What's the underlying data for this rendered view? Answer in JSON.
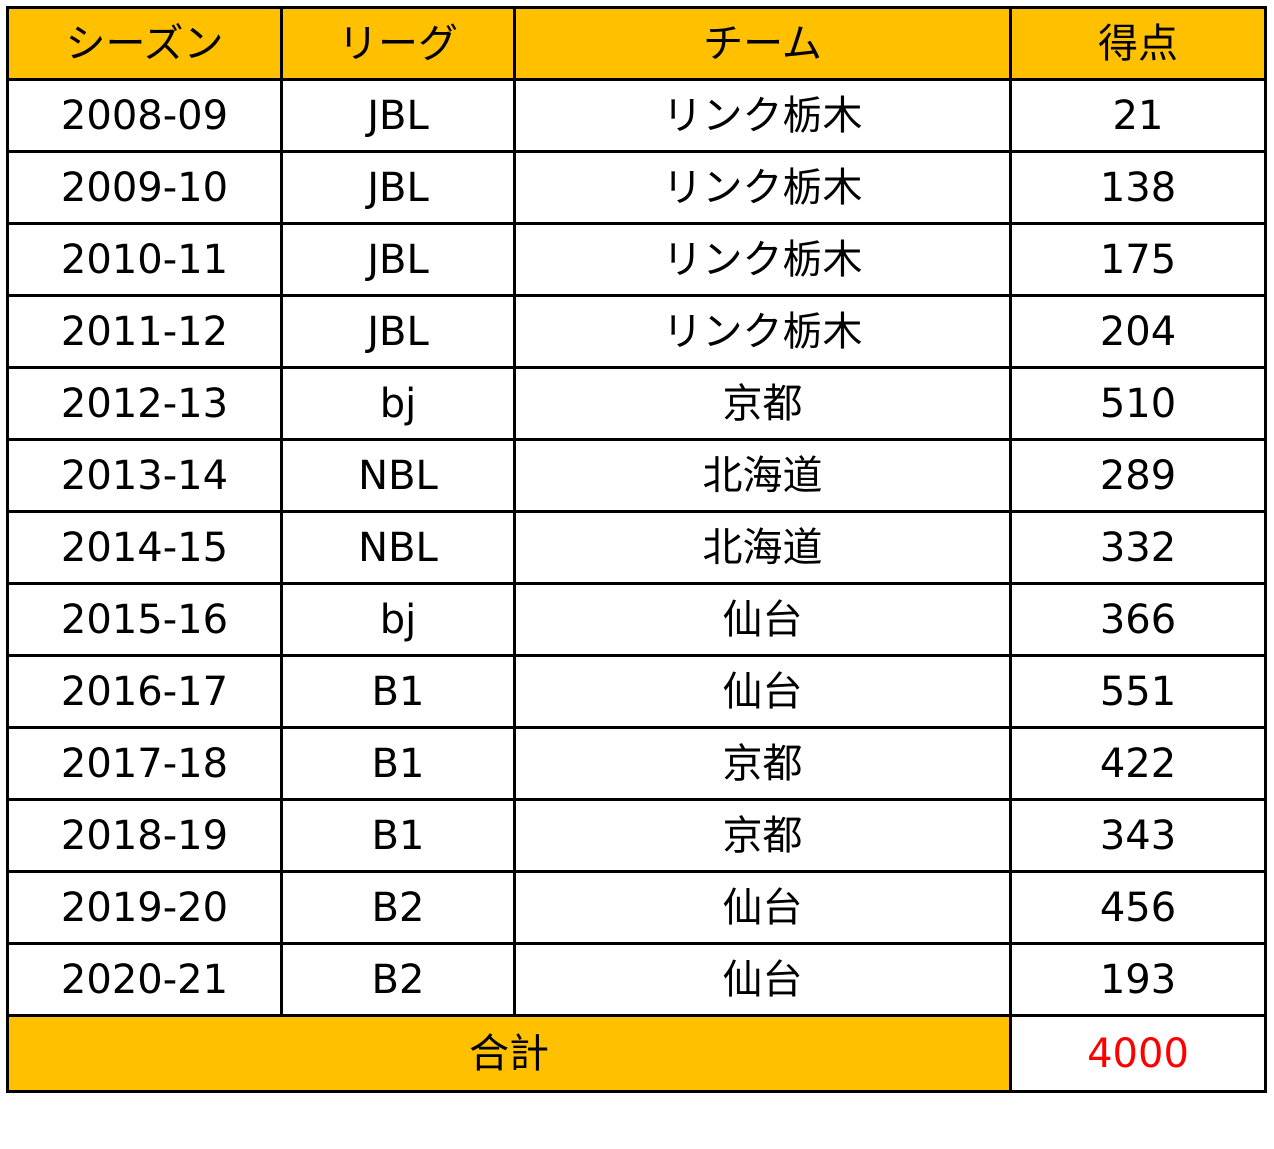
{
  "table": {
    "headers": {
      "season": "シーズン",
      "league": "リーグ",
      "team": "チーム",
      "points": "得点"
    },
    "rows": [
      {
        "season": "2008-09",
        "league": "JBL",
        "team": "リンク栃木",
        "points": "21"
      },
      {
        "season": "2009-10",
        "league": "JBL",
        "team": "リンク栃木",
        "points": "138"
      },
      {
        "season": "2010-11",
        "league": "JBL",
        "team": "リンク栃木",
        "points": "175"
      },
      {
        "season": "2011-12",
        "league": "JBL",
        "team": "リンク栃木",
        "points": "204"
      },
      {
        "season": "2012-13",
        "league": "bj",
        "team": "京都",
        "points": "510"
      },
      {
        "season": "2013-14",
        "league": "NBL",
        "team": "北海道",
        "points": "289"
      },
      {
        "season": "2014-15",
        "league": "NBL",
        "team": "北海道",
        "points": "332"
      },
      {
        "season": "2015-16",
        "league": "bj",
        "team": "仙台",
        "points": "366"
      },
      {
        "season": "2016-17",
        "league": "B1",
        "team": "仙台",
        "points": "551"
      },
      {
        "season": "2017-18",
        "league": "B1",
        "team": "京都",
        "points": "422"
      },
      {
        "season": "2018-19",
        "league": "B1",
        "team": "京都",
        "points": "343"
      },
      {
        "season": "2019-20",
        "league": "B2",
        "team": "仙台",
        "points": "456"
      },
      {
        "season": "2020-21",
        "league": "B2",
        "team": "仙台",
        "points": "193"
      }
    ],
    "total": {
      "label": "合計",
      "value": "4000"
    }
  },
  "colors": {
    "header_fill": "#ffc000",
    "total_value_text": "#ff0000",
    "border": "#000000"
  }
}
